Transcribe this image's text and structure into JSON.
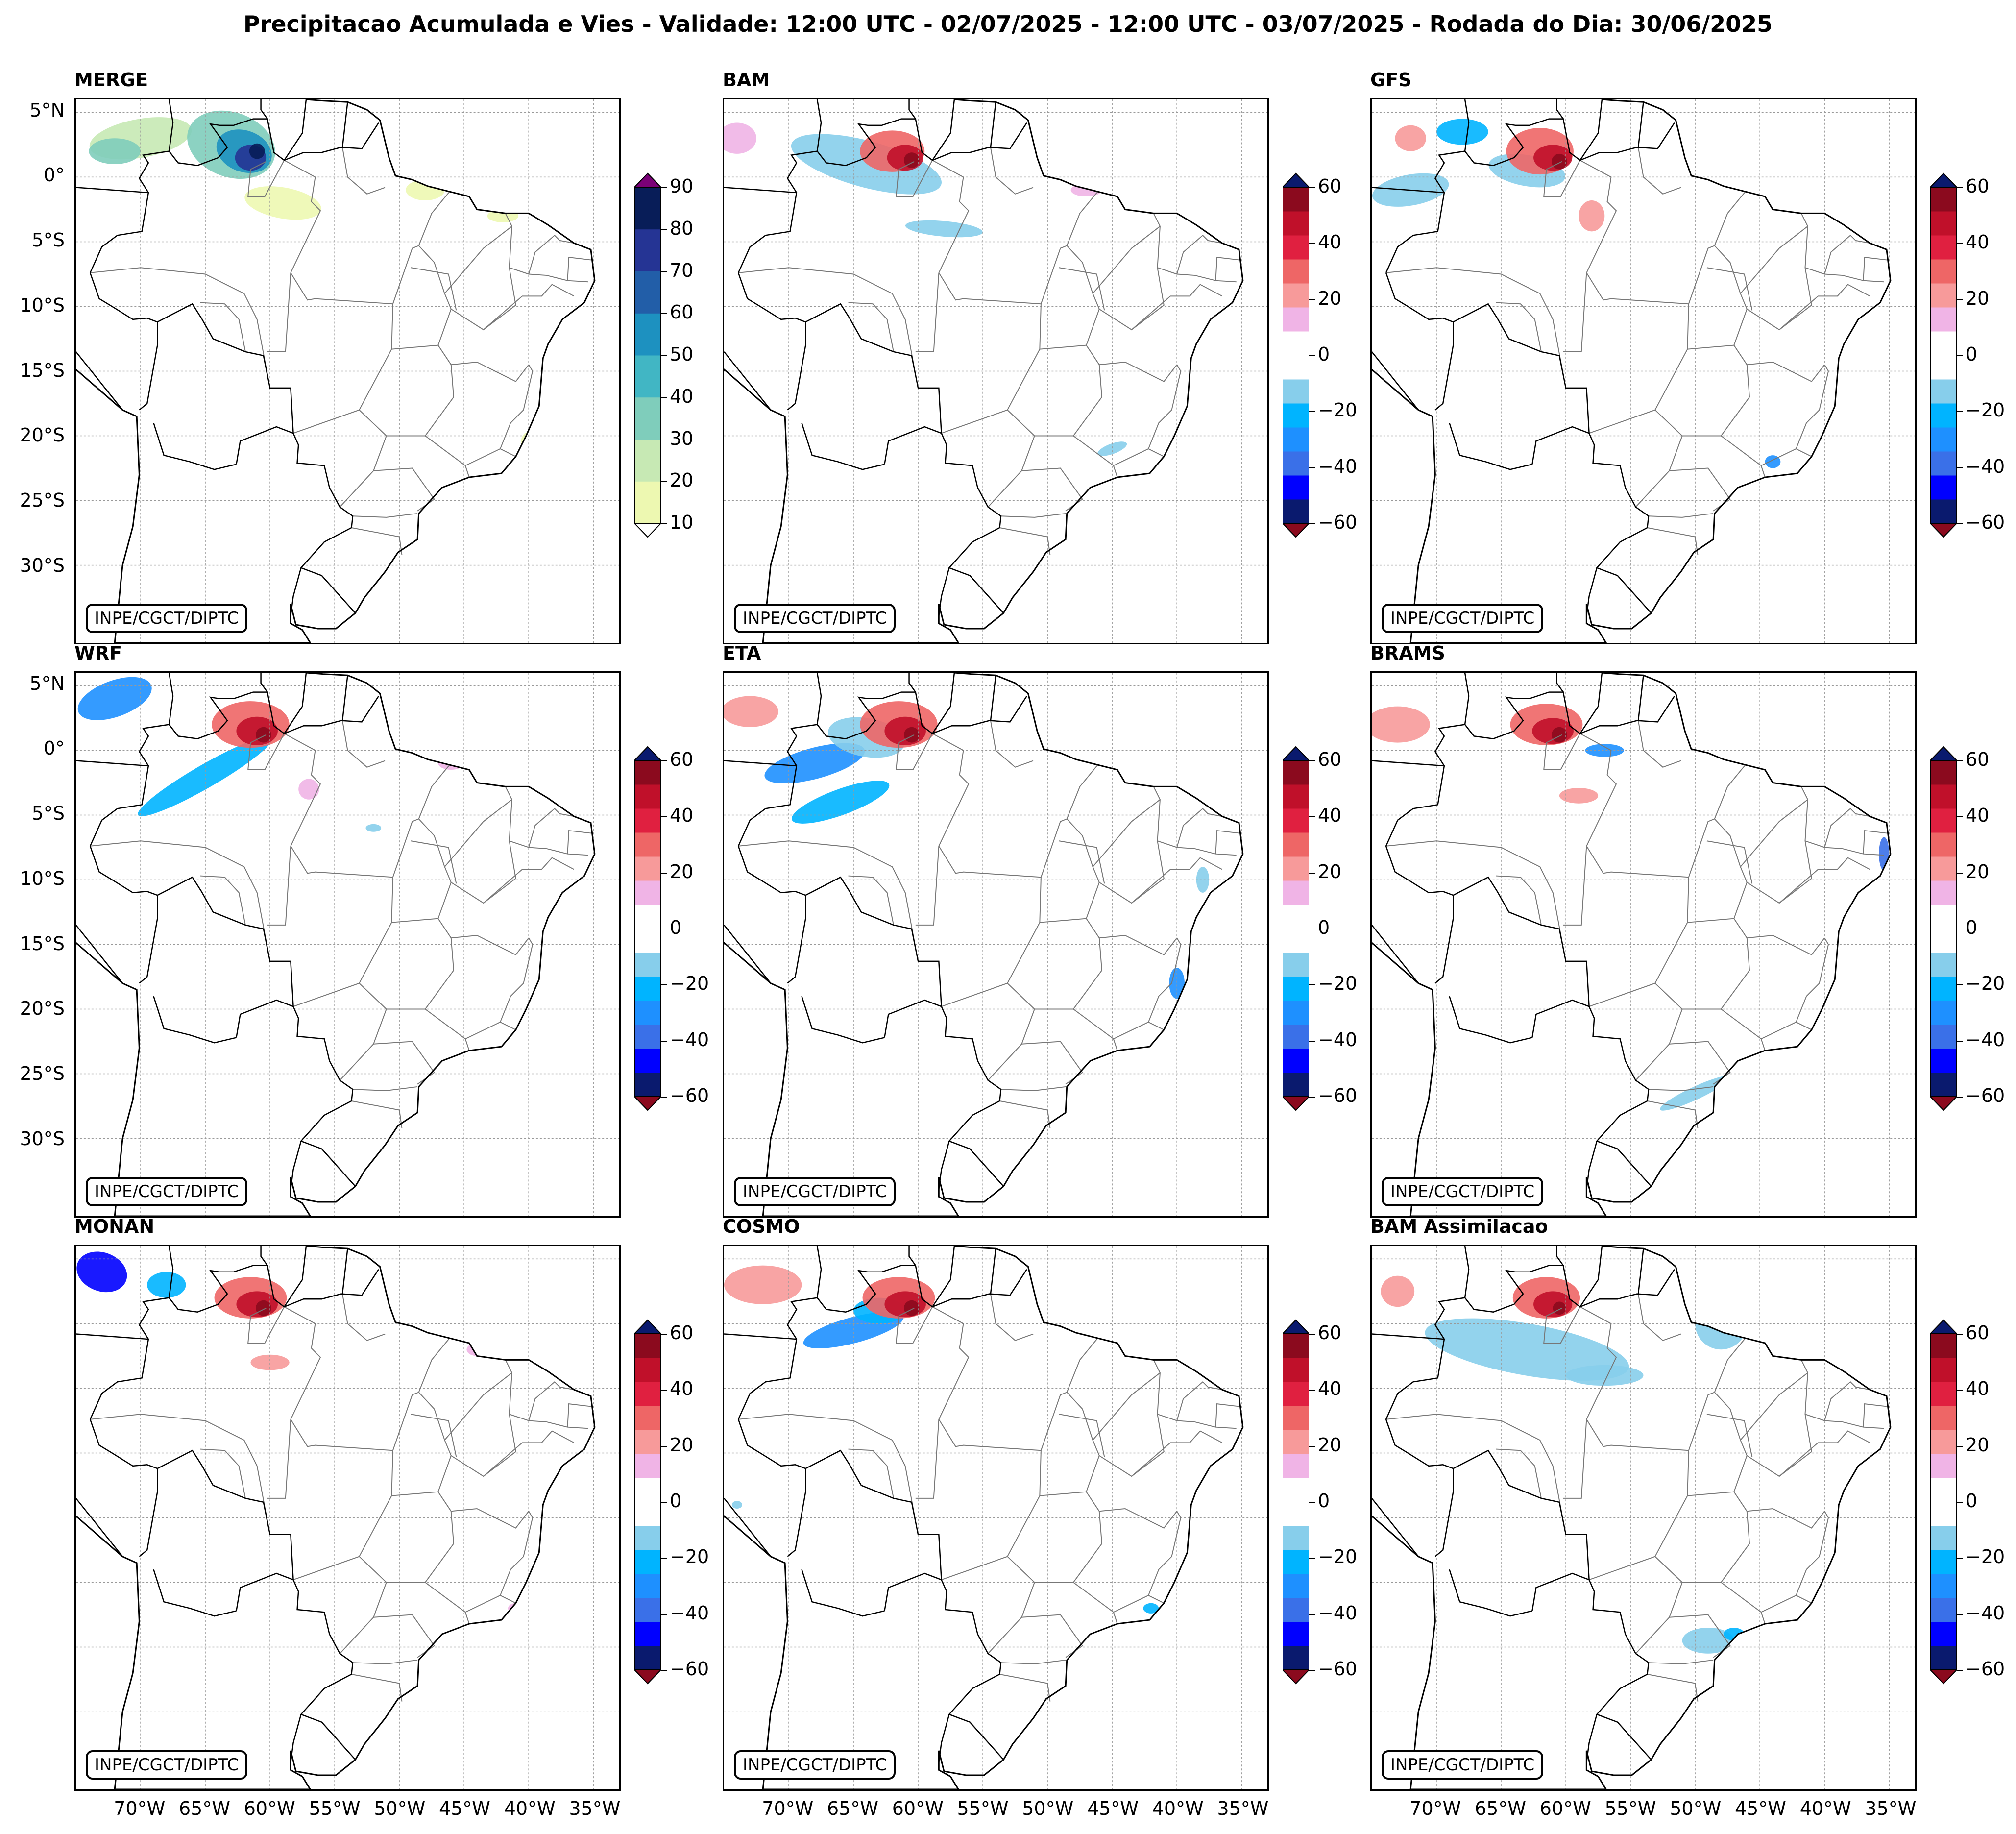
{
  "title": "Precipitacao Acumulada e Vies - Validade: 12:00 UTC - 02/07/2025 - 12:00 UTC - 03/07/2025 - Rodada do Dia: 30/06/2025",
  "credit": "INPE/CGCT/DIPTC",
  "lat_labels": [
    "5°N",
    "0°",
    "5°S",
    "10°S",
    "15°S",
    "20°S",
    "25°S",
    "30°S"
  ],
  "lon_labels": [
    "70°W",
    "65°W",
    "60°W",
    "55°W",
    "50°W",
    "45°W",
    "40°W",
    "35°W"
  ],
  "colorbars": {
    "precip": {
      "ticks": [
        "90",
        "80",
        "70",
        "60",
        "50",
        "40",
        "30",
        "20",
        "10"
      ],
      "colors": [
        "#edf8b1",
        "#c7e9b4",
        "#7fcdbb",
        "#41b6c4",
        "#1d91c0",
        "#225ea8",
        "#253494",
        "#081d58"
      ],
      "under": "#ffffff",
      "over": "#7a0177"
    },
    "bias": {
      "ticks": [
        "60",
        "40",
        "20",
        "0",
        "−20",
        "−40",
        "−60"
      ],
      "colors": [
        "#0a1a6e",
        "#0000ff",
        "#3a70e8",
        "#1e90ff",
        "#00b4ff",
        "#87ceeb",
        "#ffffff",
        "#ffffff",
        "#f0b4e6",
        "#f79a9a",
        "#ee6666",
        "#e02040",
        "#c0102a",
        "#8b0a1e"
      ],
      "over": "#0a1a6e",
      "under": "#6e0010"
    }
  },
  "panels": [
    {
      "name": "MERGE",
      "kind": "precip",
      "col": 0,
      "row": 0
    },
    {
      "name": "BAM",
      "kind": "bias",
      "col": 1,
      "row": 0
    },
    {
      "name": "GFS",
      "kind": "bias",
      "col": 2,
      "row": 0
    },
    {
      "name": "WRF",
      "kind": "bias",
      "col": 0,
      "row": 1
    },
    {
      "name": "ETA",
      "kind": "bias",
      "col": 1,
      "row": 1
    },
    {
      "name": "BRAMS",
      "kind": "bias",
      "col": 2,
      "row": 1
    },
    {
      "name": "MONAN",
      "kind": "bias",
      "col": 0,
      "row": 2
    },
    {
      "name": "COSMO",
      "kind": "bias",
      "col": 1,
      "row": 2
    },
    {
      "name": "BAM Assimilacao",
      "kind": "bias",
      "col": 2,
      "row": 2
    }
  ]
}
